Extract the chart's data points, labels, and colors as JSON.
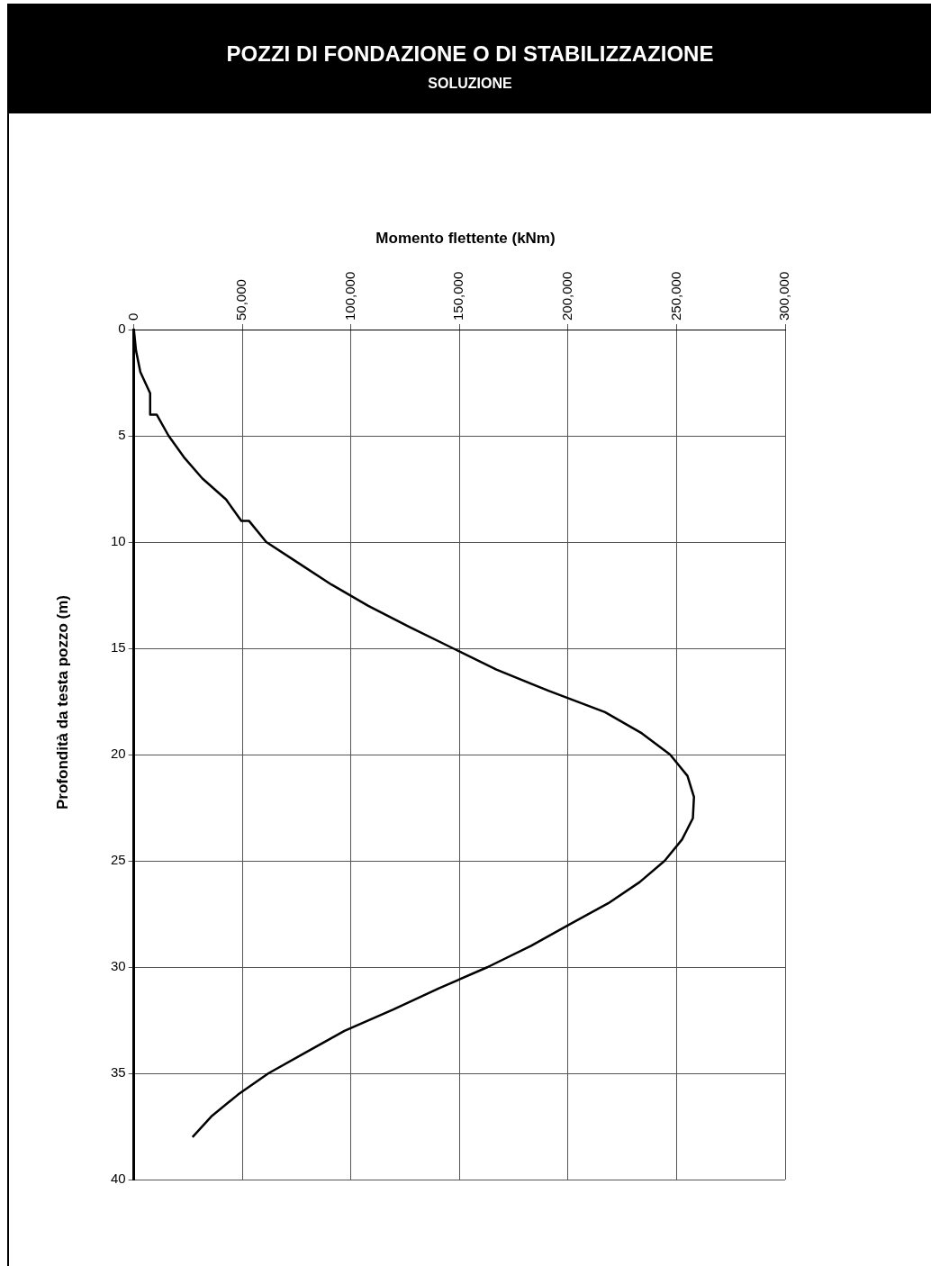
{
  "chart_data": {
    "type": "line",
    "title": "POZZI DI FONDAZIONE O DI STABILIZZAZIONE",
    "subtitle": "SOLUZIONE",
    "xlabel": "Momento flettente (kNm)",
    "ylabel": "Profondità da testa pozzo (m)",
    "xlim": [
      0,
      300000
    ],
    "xticks": [
      0,
      {
        "value": 50000,
        "label": "50,000"
      },
      {
        "value": 100000,
        "label": "100,000"
      },
      {
        "value": 150000,
        "label": "150,000"
      },
      {
        "value": 200000,
        "label": "200,000"
      },
      {
        "value": 250000,
        "label": "250,000"
      },
      {
        "value": 300000,
        "label": "300,000"
      }
    ],
    "ylim": [
      40,
      0
    ],
    "yticks": [
      0,
      5,
      10,
      15,
      20,
      25,
      30,
      35,
      40
    ],
    "grid": true,
    "legend": false,
    "marker": "none",
    "line_style": "solid",
    "series": [
      {
        "color": "#000000",
        "x": [
          0,
          1000,
          3000,
          7500,
          7500,
          10500,
          16000,
          23000,
          31500,
          42500,
          49500,
          53000,
          61000,
          76000,
          91000,
          108000,
          127000,
          147000,
          167000,
          191000,
          217000,
          234000,
          247000,
          255000,
          258000,
          257500,
          252500,
          244500,
          233000,
          218500,
          200500,
          183000,
          163000,
          140500,
          119500,
          97000,
          79500,
          62000,
          48000,
          36000,
          27000
        ],
        "values": [
          0,
          1,
          2,
          3,
          4,
          4,
          5,
          6,
          7,
          8,
          9,
          9,
          10,
          11,
          12,
          13,
          14,
          15,
          16,
          17,
          18,
          19,
          20,
          21,
          22,
          23,
          24,
          25,
          26,
          27,
          28,
          29,
          30,
          31,
          32,
          33,
          34,
          35,
          36,
          37,
          38
        ]
      }
    ]
  }
}
